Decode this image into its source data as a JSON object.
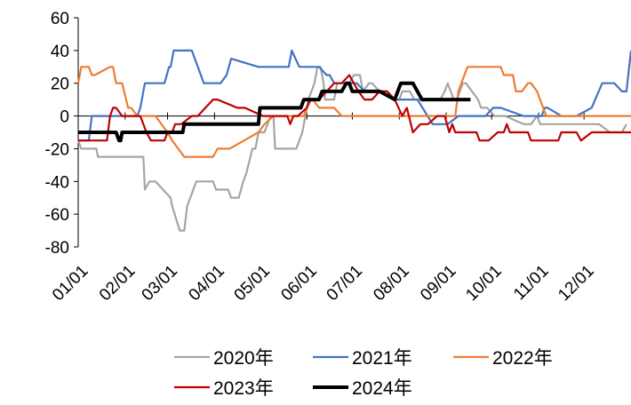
{
  "chart_data": {
    "type": "line",
    "title": "",
    "xlabel": "",
    "ylabel": "",
    "ylim": [
      -80,
      60
    ],
    "yticks": [
      60,
      40,
      20,
      0,
      -20,
      -40,
      -60,
      -80
    ],
    "xlim": [
      1,
      366
    ],
    "xticks": [
      {
        "label": "01/01",
        "day": 1
      },
      {
        "label": "02/01",
        "day": 32
      },
      {
        "label": "03/01",
        "day": 60
      },
      {
        "label": "04/01",
        "day": 91
      },
      {
        "label": "05/01",
        "day": 121
      },
      {
        "label": "06/01",
        "day": 152
      },
      {
        "label": "07/01",
        "day": 182
      },
      {
        "label": "08/01",
        "day": 213
      },
      {
        "label": "09/01",
        "day": 244
      },
      {
        "label": "10/01",
        "day": 274
      },
      {
        "label": "11/01",
        "day": 305
      },
      {
        "label": "12/01",
        "day": 335
      }
    ],
    "legend_position": "bottom",
    "series": [
      {
        "name": "2020年",
        "color": "#a5a5a5",
        "x": [
          1,
          3,
          7,
          13,
          14,
          44,
          45,
          48,
          52,
          62,
          63,
          68,
          71,
          73,
          79,
          81,
          90,
          92,
          94,
          100,
          102,
          107,
          110,
          112,
          116,
          118,
          120,
          124,
          126,
          128,
          130,
          131,
          145,
          147,
          149,
          151,
          153,
          157,
          159,
          161,
          163,
          164,
          167,
          170,
          172,
          180,
          183,
          187,
          189,
          193,
          195,
          200,
          205,
          209,
          213,
          215,
          220,
          223,
          230,
          237,
          240,
          243,
          245,
          247,
          249,
          251,
          253,
          255,
          257,
          261,
          265,
          267,
          271,
          276,
          283,
          295,
          300,
          304,
          306,
          320,
          335,
          345,
          352,
          356,
          360,
          363
        ],
        "y": [
          -15,
          -20,
          -20,
          -20,
          -25,
          -25,
          -45,
          -40,
          -40,
          -50,
          -55,
          -70,
          -70,
          -55,
          -40,
          -40,
          -40,
          -45,
          -45,
          -45,
          -50,
          -50,
          -40,
          -35,
          -20,
          -20,
          -10,
          -10,
          -5,
          0,
          0,
          -20,
          -20,
          -15,
          -10,
          0,
          10,
          20,
          30,
          30,
          20,
          10,
          10,
          10,
          20,
          20,
          25,
          25,
          15,
          20,
          20,
          15,
          15,
          10,
          10,
          15,
          15,
          10,
          10,
          10,
          10,
          15,
          20,
          15,
          10,
          10,
          15,
          20,
          20,
          15,
          10,
          5,
          5,
          0,
          0,
          -5,
          -5,
          0,
          -5,
          -5,
          -5,
          -5,
          -10,
          -10,
          -10,
          -5
        ]
      },
      {
        "name": "2021年",
        "color": "#4472c4",
        "x": [
          1,
          8,
          10,
          16,
          20,
          21,
          24,
          40,
          42,
          45,
          46,
          55,
          58,
          61,
          62,
          64,
          76,
          80,
          84,
          86,
          88,
          91,
          92,
          93,
          95,
          99,
          102,
          120,
          122,
          123,
          124,
          125,
          128,
          140,
          142,
          147,
          148,
          150,
          160,
          165,
          167,
          170,
          180,
          185,
          190,
          200,
          205,
          210,
          214,
          220,
          225,
          235,
          240,
          245,
          252,
          260,
          270,
          275,
          280,
          295,
          300,
          305,
          307,
          309,
          311,
          320,
          330,
          340,
          347,
          355,
          360,
          363,
          366
        ],
        "y": [
          -15,
          -15,
          0,
          0,
          0,
          0,
          0,
          0,
          5,
          20,
          20,
          20,
          20,
          30,
          30,
          40,
          40,
          30,
          20,
          20,
          20,
          20,
          20,
          20,
          20,
          25,
          35,
          30,
          30,
          30,
          30,
          30,
          30,
          30,
          40,
          30,
          30,
          30,
          30,
          25,
          25,
          20,
          20,
          20,
          15,
          15,
          15,
          10,
          10,
          10,
          10,
          -5,
          -5,
          -5,
          0,
          0,
          0,
          5,
          5,
          0,
          0,
          0,
          0,
          5,
          5,
          0,
          0,
          5,
          20,
          20,
          15,
          15,
          40
        ]
      },
      {
        "name": "2022年",
        "color": "#ed7d31",
        "x": [
          1,
          3,
          8,
          10,
          12,
          22,
          24,
          26,
          30,
          34,
          36,
          40,
          45,
          48,
          52,
          60,
          63,
          67,
          71,
          90,
          93,
          97,
          101,
          120,
          124,
          130,
          140,
          150,
          152,
          155,
          156,
          160,
          170,
          175,
          180,
          185,
          190,
          200,
          210,
          214,
          220,
          230,
          240,
          250,
          252,
          254,
          256,
          258,
          262,
          266,
          280,
          282,
          288,
          290,
          294,
          298,
          300,
          304,
          310,
          320,
          340,
          360,
          366
        ],
        "y": [
          20,
          30,
          30,
          25,
          25,
          30,
          30,
          20,
          20,
          5,
          5,
          0,
          0,
          0,
          0,
          -10,
          -15,
          -20,
          -25,
          -25,
          -20,
          -20,
          -20,
          -10,
          -5,
          0,
          0,
          0,
          5,
          10,
          10,
          5,
          5,
          0,
          0,
          0,
          0,
          0,
          0,
          0,
          0,
          0,
          0,
          0,
          15,
          20,
          25,
          30,
          30,
          30,
          30,
          25,
          25,
          15,
          15,
          20,
          20,
          15,
          0,
          0,
          0,
          0,
          0
        ]
      },
      {
        "name": "2023年",
        "color": "#c00000",
        "x": [
          1,
          20,
          22,
          24,
          26,
          30,
          42,
          44,
          46,
          49,
          58,
          60,
          63,
          65,
          69,
          76,
          80,
          90,
          93,
          106,
          111,
          123,
          125,
          139,
          141,
          143,
          146,
          152,
          154,
          156,
          160,
          170,
          175,
          180,
          183,
          186,
          190,
          195,
          200,
          205,
          210,
          215,
          218,
          222,
          227,
          232,
          238,
          243,
          246,
          248,
          250,
          252,
          264,
          266,
          272,
          278,
          282,
          284,
          286,
          298,
          300,
          302,
          318,
          320,
          325,
          328,
          330,
          333,
          340,
          352,
          356,
          362,
          366
        ],
        "y": [
          -15,
          -15,
          0,
          5,
          5,
          0,
          0,
          -5,
          -10,
          -15,
          -15,
          -10,
          -10,
          -5,
          -5,
          0,
          0,
          10,
          10,
          5,
          5,
          0,
          0,
          0,
          -5,
          0,
          0,
          5,
          10,
          10,
          10,
          20,
          20,
          25,
          20,
          15,
          10,
          10,
          15,
          15,
          10,
          0,
          5,
          -10,
          -5,
          -5,
          0,
          0,
          -10,
          -5,
          -10,
          -10,
          -10,
          -15,
          -15,
          -10,
          -10,
          -5,
          -10,
          -10,
          -15,
          -15,
          -15,
          -10,
          -10,
          -10,
          -10,
          -15,
          -10,
          -10,
          -10,
          -10,
          -10
        ]
      },
      {
        "name": "2024年",
        "color": "#000000",
        "x": [
          1,
          26,
          28,
          29,
          30,
          55,
          70,
          71,
          89,
          120,
          121,
          125,
          130,
          148,
          150,
          160,
          162,
          170,
          175,
          178,
          180,
          182,
          200,
          210,
          214,
          222,
          228,
          242,
          260
        ],
        "y": [
          -10,
          -10,
          -15,
          -15,
          -10,
          -10,
          -10,
          -5,
          -5,
          -5,
          5,
          5,
          5,
          5,
          10,
          10,
          15,
          15,
          15,
          20,
          20,
          15,
          15,
          10,
          20,
          20,
          10,
          10,
          10
        ]
      }
    ]
  }
}
